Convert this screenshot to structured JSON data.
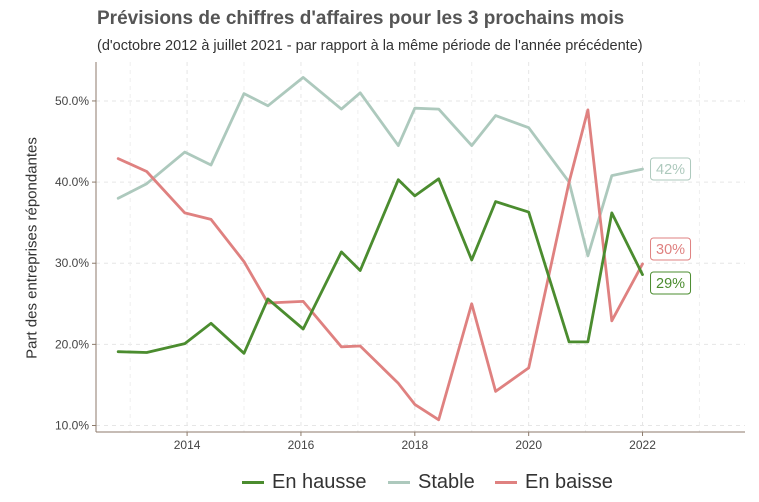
{
  "title": "Prévisions de chiffres d'affaires pour les 3 prochains mois",
  "subtitle": "(d'octobre 2012 à juillet 2021 -  par rapport à la même période de l'année précédente)",
  "chart_data": {
    "type": "line",
    "title": "Prévisions de chiffres d'affaires pour les 3 prochains mois",
    "subtitle": "(d'octobre 2012 à juillet 2021 -  par rapport à la même période de l'année précédente)",
    "xlabel": "",
    "ylabel": "Part des entreprises répondantes",
    "x_ticks": [
      2014,
      2016,
      2018,
      2020,
      2022
    ],
    "x_tick_labels": [
      "2014",
      "2016",
      "2018",
      "2020",
      "2022"
    ],
    "y_ticks": [
      10,
      20,
      30,
      40,
      50
    ],
    "y_tick_labels": [
      "10.0%",
      "20.0%",
      "30.0%",
      "40.0%",
      "50.0%"
    ],
    "xlim": [
      2012.4,
      2023.8
    ],
    "ylim": [
      9.2,
      54.8
    ],
    "grid": true,
    "legend_position": "bottom",
    "x": [
      2012.79,
      2013.29,
      2013.96,
      2014.42,
      2015.0,
      2015.42,
      2016.04,
      2016.71,
      2017.04,
      2017.71,
      2018.0,
      2018.42,
      2019.0,
      2019.42,
      2020.0,
      2020.71,
      2021.04,
      2021.46,
      2022.0
    ],
    "series": [
      {
        "name": "En hausse",
        "color": "#4b8c2f",
        "values": [
          19.1,
          19.0,
          20.1,
          22.6,
          18.9,
          25.6,
          21.9,
          31.4,
          29.1,
          40.3,
          38.3,
          40.4,
          30.4,
          37.6,
          36.3,
          20.3,
          20.3,
          36.2,
          28.6
        ],
        "end_label": "29%"
      },
      {
        "name": "Stable",
        "color": "#adc9bd",
        "values": [
          38.0,
          39.8,
          43.7,
          42.1,
          50.9,
          49.4,
          52.9,
          49.0,
          51.0,
          44.5,
          49.1,
          49.0,
          44.5,
          48.2,
          46.7,
          40.0,
          30.9,
          40.8,
          41.6
        ],
        "end_label": "42%"
      },
      {
        "name": "En baisse",
        "color": "#df8180",
        "values": [
          42.9,
          41.3,
          36.2,
          35.4,
          30.2,
          25.1,
          25.3,
          19.7,
          19.8,
          15.2,
          12.6,
          10.7,
          25.0,
          14.2,
          17.1,
          40.0,
          48.9,
          22.9,
          29.9
        ],
        "end_label": "30%"
      }
    ]
  },
  "legend": {
    "items": [
      {
        "label": "En hausse",
        "color": "#4b8c2f"
      },
      {
        "label": "Stable",
        "color": "#adc9bd"
      },
      {
        "label": "En baisse",
        "color": "#df8180"
      }
    ]
  }
}
